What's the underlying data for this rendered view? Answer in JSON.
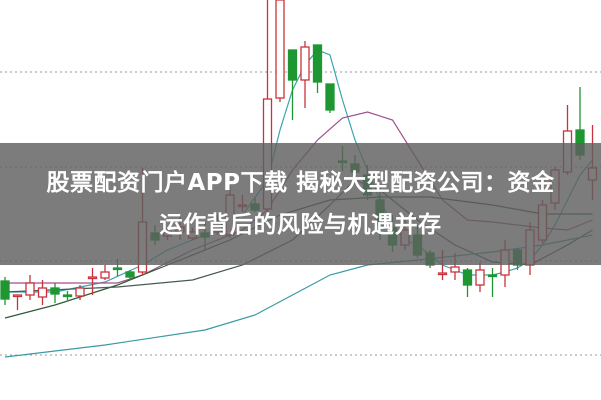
{
  "headline": {
    "line1": "股票配资门户APP下载 揭秘大型配资公司：资金",
    "line2": "运作背后的风险与机遇并存"
  },
  "chart_data": {
    "type": "candlestick",
    "title": "",
    "xlabel": "",
    "ylabel": "",
    "ylim": [
      0,
      40
    ],
    "grid": {
      "horizontal": true,
      "style": "dotted",
      "values": [
        32.8,
        23.3,
        13.9,
        4.5
      ]
    },
    "colors": {
      "up": "#c8323c",
      "down": "#1e9632",
      "ma5": "#3aa5b0",
      "ma10": "#a0508c",
      "ma20": "#2f5a3a",
      "ma30": "#4a5a50",
      "ma60": "#3a9aa5",
      "grid": "#999999"
    },
    "candles_ohlc": [
      [
        11.9,
        12.3,
        9.5,
        10.1
      ],
      [
        10.4,
        10.4,
        9.0,
        10.5
      ],
      [
        10.5,
        12.5,
        10.0,
        11.7
      ],
      [
        10.3,
        12.0,
        9.5,
        11.2
      ],
      [
        11.2,
        11.7,
        9.7,
        10.6
      ],
      [
        10.5,
        10.9,
        10.0,
        10.4
      ],
      [
        10.4,
        11.5,
        10.0,
        11.2
      ],
      [
        12.2,
        13.2,
        10.5,
        12.3
      ],
      [
        12.2,
        13.5,
        12.0,
        12.8
      ],
      [
        13.2,
        14.1,
        12.4,
        13.1
      ],
      [
        12.8,
        13.0,
        12.0,
        12.3
      ],
      [
        12.8,
        23.2,
        12.5,
        17.8
      ],
      [
        16.7,
        17.5,
        15.5,
        16.0
      ],
      [
        16.4,
        17.2,
        16.0,
        16.8
      ],
      [
        16.8,
        18.5,
        16.0,
        17.3
      ],
      [
        16.2,
        17.2,
        16.0,
        16.8
      ],
      [
        16.7,
        17.8,
        15.0,
        16.3
      ],
      [
        16.8,
        18.5,
        16.5,
        17.8
      ],
      [
        16.5,
        21.5,
        16.2,
        20.5
      ],
      [
        19.4,
        20.5,
        18.8,
        19.5
      ],
      [
        19.6,
        20.2,
        18.8,
        19.0
      ],
      [
        19.1,
        40.0,
        18.8,
        30.1
      ],
      [
        30.2,
        40.0,
        29.8,
        40.0
      ],
      [
        35.0,
        35.0,
        28.0,
        32.0
      ],
      [
        32.0,
        35.9,
        29.2,
        35.3
      ],
      [
        35.5,
        35.5,
        30.7,
        31.8
      ],
      [
        31.6,
        31.6,
        28.7,
        29.0
      ],
      [
        23.9,
        25.4,
        22.9,
        23.8
      ],
      [
        23.6,
        24.5,
        21.5,
        22.8
      ],
      [
        22.5,
        23.5,
        20.0,
        20.5
      ],
      [
        20.0,
        21.5,
        16.0,
        17.5
      ],
      [
        17.2,
        18.5,
        14.8,
        15.5
      ],
      [
        15.5,
        18.0,
        15.0,
        17.0
      ],
      [
        16.5,
        17.5,
        14.2,
        14.5
      ],
      [
        14.7,
        15.0,
        13.2,
        13.5
      ],
      [
        12.6,
        15.0,
        12.0,
        12.7
      ],
      [
        12.8,
        14.7,
        12.0,
        13.3
      ],
      [
        13.0,
        13.2,
        10.3,
        11.5
      ],
      [
        11.5,
        13.8,
        10.8,
        13.0
      ],
      [
        12.5,
        13.2,
        10.3,
        12.4
      ],
      [
        12.5,
        16.0,
        11.3,
        15.0
      ],
      [
        15.0,
        15.2,
        13.0,
        13.5
      ],
      [
        13.5,
        17.8,
        12.5,
        17.0
      ],
      [
        16.0,
        20.0,
        15.7,
        19.5
      ],
      [
        19.7,
        23.3,
        19.0,
        23.0
      ],
      [
        22.8,
        29.5,
        22.5,
        26.9
      ],
      [
        27.0,
        31.3,
        24.0,
        24.5
      ],
      [
        22.0,
        27.5,
        20.0,
        23.2
      ]
    ],
    "moving_averages": [
      {
        "key": "ma5",
        "points": [
          [
            1,
            10.8
          ],
          [
            5,
            10.8
          ],
          [
            9,
            11.8
          ],
          [
            12,
            13.5
          ],
          [
            14,
            15
          ],
          [
            17,
            16.5
          ],
          [
            20,
            18.5
          ],
          [
            22,
            22
          ],
          [
            23,
            27
          ],
          [
            24,
            31
          ],
          [
            25,
            33.5
          ],
          [
            26,
            35
          ],
          [
            27,
            34.5
          ],
          [
            28,
            30
          ],
          [
            29,
            26
          ],
          [
            30,
            23
          ],
          [
            31,
            20
          ],
          [
            32,
            17.5
          ],
          [
            33,
            16
          ],
          [
            34,
            15.5
          ],
          [
            35,
            14.5
          ],
          [
            36,
            13.5
          ],
          [
            37,
            13
          ],
          [
            38,
            12.5
          ],
          [
            40,
            12.5
          ],
          [
            41,
            12.8
          ],
          [
            42,
            13.2
          ],
          [
            43,
            14
          ],
          [
            44,
            15.5
          ],
          [
            45,
            17.5
          ],
          [
            46,
            20
          ],
          [
            47,
            22.5
          ],
          [
            48,
            24
          ]
        ]
      },
      {
        "key": "ma10",
        "points": [
          [
            1,
            11.7
          ],
          [
            5,
            11.7
          ],
          [
            10,
            11.7
          ],
          [
            12,
            12.5
          ],
          [
            16,
            15
          ],
          [
            20,
            17
          ],
          [
            22,
            19
          ],
          [
            24,
            23
          ],
          [
            26,
            26
          ],
          [
            28,
            28.2
          ],
          [
            30,
            28.8
          ],
          [
            32,
            28
          ],
          [
            34,
            24
          ],
          [
            36,
            20
          ],
          [
            38,
            18
          ],
          [
            40,
            17.8
          ],
          [
            42,
            17.5
          ],
          [
            44,
            17.2
          ],
          [
            46,
            17
          ],
          [
            48,
            18
          ]
        ]
      },
      {
        "key": "ma20",
        "points": [
          [
            1,
            8.2
          ],
          [
            5,
            9.5
          ],
          [
            10,
            11.5
          ],
          [
            14,
            13.5
          ],
          [
            19,
            16
          ],
          [
            23,
            18.5
          ],
          [
            27,
            20
          ],
          [
            31,
            20.3
          ],
          [
            35,
            20.3
          ],
          [
            40,
            19.5
          ],
          [
            44,
            18.6
          ],
          [
            48,
            18.6
          ]
        ]
      },
      {
        "key": "ma30",
        "points": [
          [
            1,
            10.8
          ],
          [
            10,
            11.3
          ],
          [
            16,
            12
          ],
          [
            20,
            13.5
          ],
          [
            24,
            16
          ],
          [
            27,
            19.5
          ],
          [
            29,
            22
          ],
          [
            31,
            21
          ],
          [
            34,
            18
          ],
          [
            37,
            15.5
          ],
          [
            40,
            13.8
          ],
          [
            43,
            13.5
          ],
          [
            46,
            15.5
          ],
          [
            48,
            17
          ]
        ]
      },
      {
        "key": "ma60",
        "points": [
          [
            1,
            4.3
          ],
          [
            9,
            5.5
          ],
          [
            17,
            7
          ],
          [
            21,
            8.5
          ],
          [
            24,
            10.5
          ],
          [
            27,
            12.5
          ],
          [
            30,
            13.5
          ],
          [
            34,
            14
          ],
          [
            40,
            14.8
          ],
          [
            44,
            15.5
          ],
          [
            48,
            16.5
          ]
        ]
      }
    ]
  }
}
